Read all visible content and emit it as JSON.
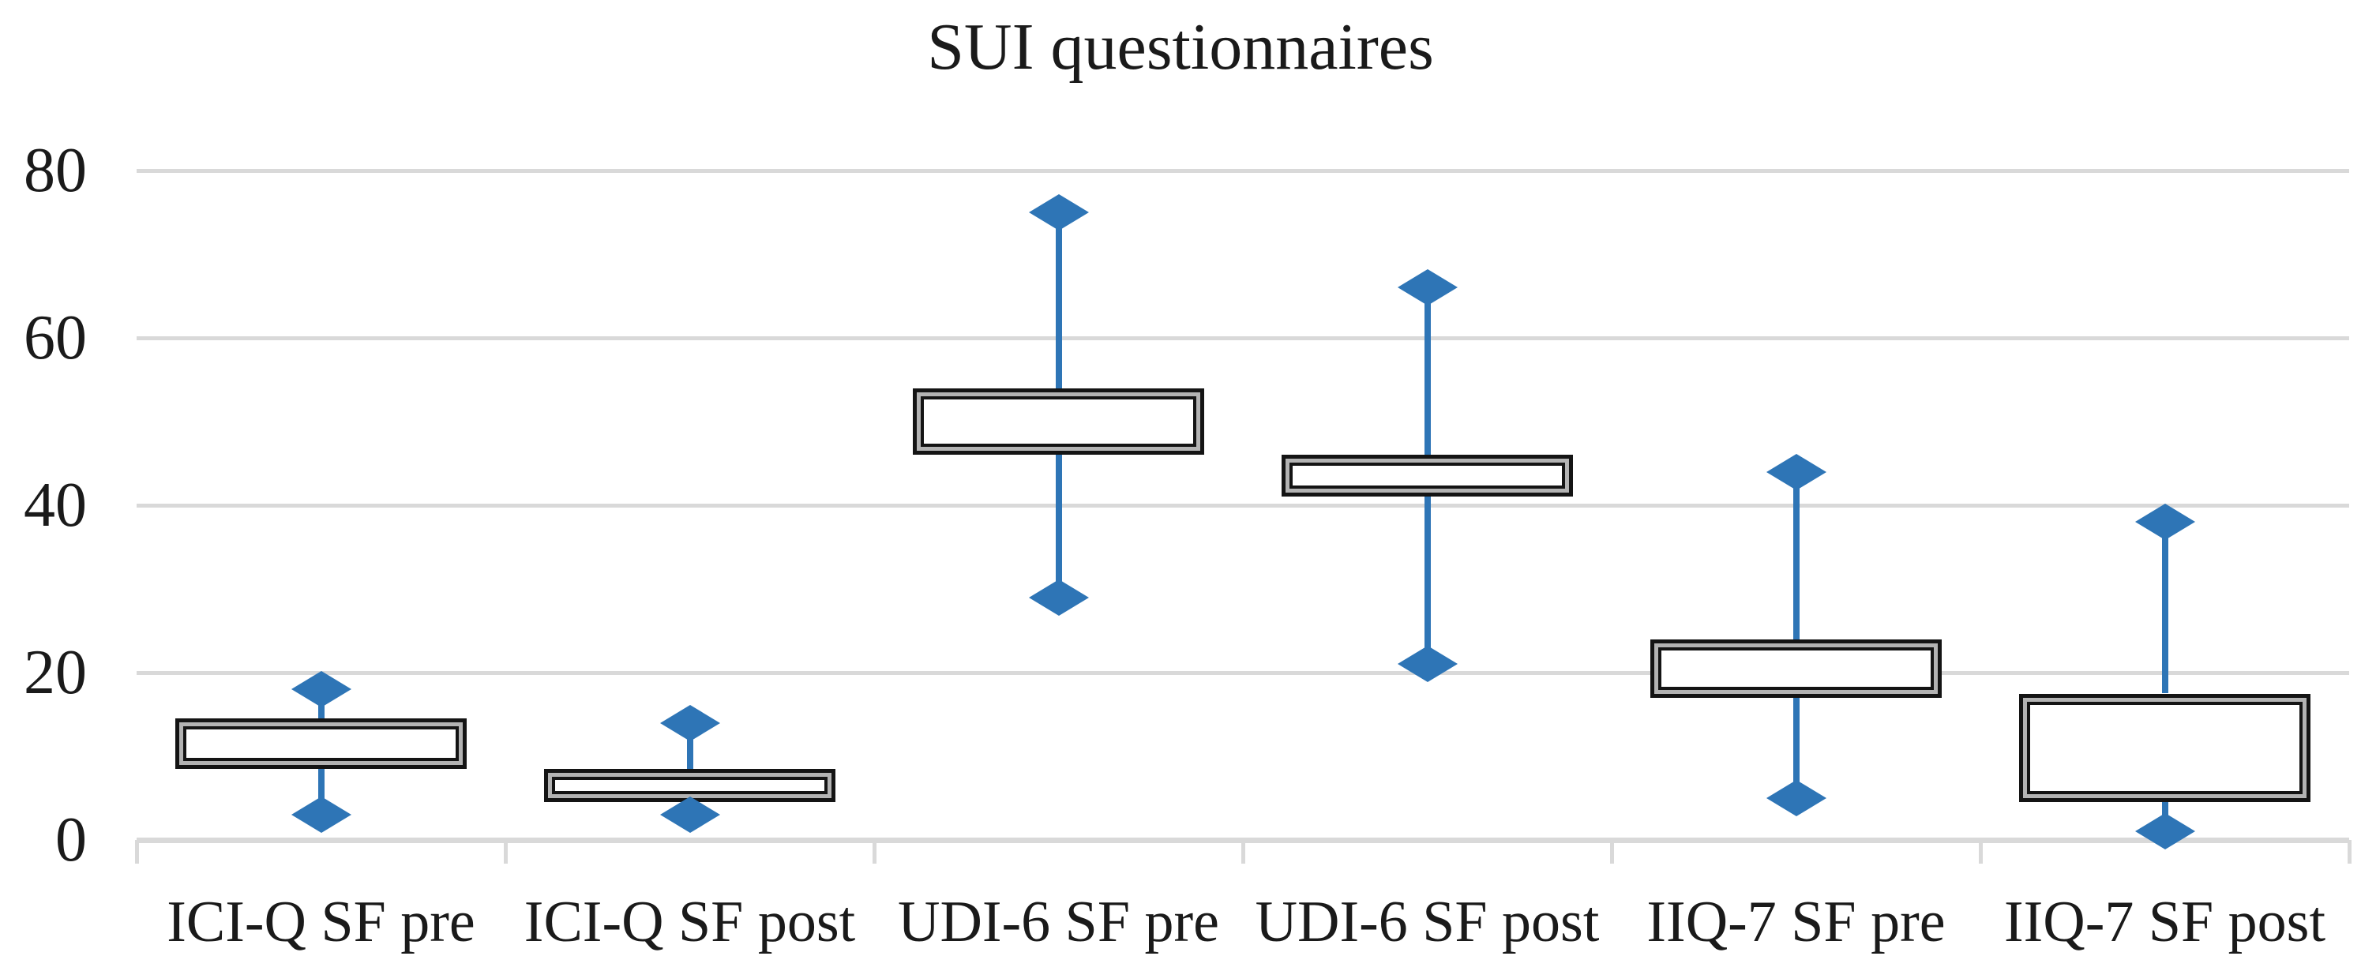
{
  "title": "SUI questionnaires",
  "colors": {
    "marker_blue": "#2E75B6",
    "gridline_gray": "#D9D9D9",
    "box_border_black": "#141414",
    "box_gap_gray": "#B3B3B3",
    "text_black": "#1A1A1A",
    "background": "#FFFFFF"
  },
  "chart_data": {
    "type": "boxplot",
    "title": "SUI questionnaires",
    "categories": [
      "ICI-Q SF pre",
      "ICI-Q SF post",
      "UDI-6 SF pre",
      "UDI-6 SF post",
      "IIQ-7 SF pre",
      "IIQ-7 SF post"
    ],
    "series": [
      {
        "label": "ICI-Q SF pre",
        "whisker_low": 3,
        "q1": 8.5,
        "q3": 14.5,
        "whisker_high": 18
      },
      {
        "label": "ICI-Q SF post",
        "whisker_low": 3,
        "q1": 4.5,
        "q3": 8.5,
        "whisker_high": 14
      },
      {
        "label": "UDI-6 SF pre",
        "whisker_low": 29,
        "q1": 46,
        "q3": 54,
        "whisker_high": 75
      },
      {
        "label": "UDI-6 SF post",
        "whisker_low": 21,
        "q1": 41,
        "q3": 46,
        "whisker_high": 66
      },
      {
        "label": "IIQ-7 SF pre",
        "whisker_low": 5,
        "q1": 17,
        "q3": 24,
        "whisker_high": 44
      },
      {
        "label": "IIQ-7 SF post",
        "whisker_low": 1,
        "q1": 4.5,
        "q3": 17.5,
        "whisker_high": 38
      }
    ],
    "ylabel": "",
    "xlabel": "",
    "ylim": [
      0,
      80
    ],
    "yticks": [
      80,
      60,
      40,
      20,
      0
    ],
    "grid": true,
    "legend": false,
    "marker_shape": "diamond",
    "median_line": false
  }
}
